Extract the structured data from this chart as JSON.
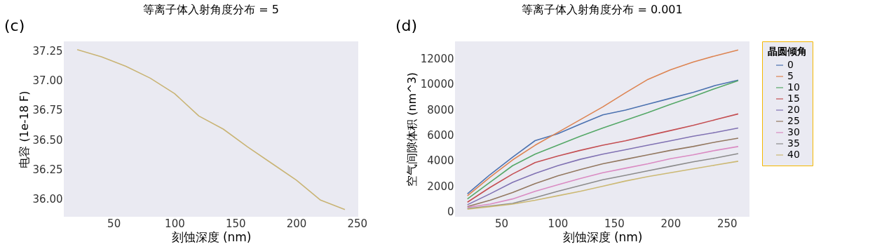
{
  "chart_data": [
    {
      "type": "line",
      "title": "等离子体入射角度分布  = 5",
      "xlabel": "刻蚀深度  (nm)",
      "ylabel": "电容  (1e-18 F)",
      "annotations": [
        "(c)"
      ],
      "x": [
        20,
        40,
        60,
        80,
        100,
        120,
        140,
        160,
        180,
        200,
        220,
        240
      ],
      "series": [
        {
          "color": "#c9b475",
          "values": [
            37.26,
            37.2,
            37.12,
            37.02,
            36.89,
            36.7,
            36.59,
            36.44,
            36.3,
            36.16,
            35.99,
            35.91
          ]
        }
      ],
      "xlim": [
        9,
        251
      ],
      "xticks": [
        50,
        100,
        150,
        200,
        250
      ],
      "ylim": [
        35.85,
        37.33
      ],
      "yticks": [
        {
          "value": 36,
          "label": "36.00"
        },
        36.25,
        {
          "value": 36.5,
          "label": "36.50"
        },
        36.75,
        {
          "value": 37,
          "label": "37.00"
        },
        37.25
      ],
      "grid": false,
      "legend": false
    },
    {
      "type": "line",
      "title": "等离子体入射角度分布  = 0.001",
      "xlabel": "刻蚀深度  (nm)",
      "ylabel": "空气间隙体积  (nm^3)",
      "legend_title": "晶圆倾角",
      "annotations": [
        "(d)"
      ],
      "x": [
        20,
        40,
        60,
        80,
        100,
        120,
        140,
        160,
        180,
        200,
        220,
        240,
        260
      ],
      "series": [
        {
          "name": "0",
          "color": "#4c72b0",
          "values": [
            1400,
            2900,
            4270,
            5560,
            6100,
            6850,
            7580,
            7950,
            8410,
            8870,
            9330,
            9880,
            10290
          ]
        },
        {
          "name": "5",
          "color": "#dd8452",
          "values": [
            1250,
            2700,
            4050,
            5200,
            6200,
            7200,
            8200,
            9300,
            10350,
            11100,
            11700,
            12200,
            12650
          ]
        },
        {
          "name": "10",
          "color": "#55a868",
          "values": [
            1000,
            2300,
            3600,
            4500,
            5200,
            5900,
            6550,
            7150,
            7750,
            8400,
            9000,
            9650,
            10250
          ]
        },
        {
          "name": "15",
          "color": "#c44e52",
          "values": [
            750,
            1900,
            2950,
            3850,
            4350,
            4800,
            5200,
            5550,
            5950,
            6350,
            6750,
            7200,
            7650
          ]
        },
        {
          "name": "20",
          "color": "#8172b3",
          "values": [
            550,
            1400,
            2300,
            3000,
            3600,
            4100,
            4500,
            4850,
            5200,
            5550,
            5900,
            6200,
            6550
          ]
        },
        {
          "name": "25",
          "color": "#937860",
          "values": [
            400,
            900,
            1500,
            2200,
            2800,
            3300,
            3750,
            4100,
            4450,
            4800,
            5100,
            5450,
            5750
          ]
        },
        {
          "name": "30",
          "color": "#da8bc3",
          "values": [
            350,
            600,
            1000,
            1600,
            2100,
            2600,
            3050,
            3400,
            3750,
            4150,
            4450,
            4800,
            5100
          ]
        },
        {
          "name": "35",
          "color": "#8c8c8c",
          "values": [
            250,
            450,
            650,
            1100,
            1600,
            2050,
            2500,
            2850,
            3200,
            3550,
            3900,
            4200,
            4550
          ]
        },
        {
          "name": "40",
          "color": "#ccb974",
          "values": [
            200,
            400,
            600,
            900,
            1250,
            1600,
            2000,
            2400,
            2750,
            3050,
            3350,
            3650,
            3950
          ]
        }
      ],
      "xlim": [
        9,
        270
      ],
      "xticks": [
        50,
        100,
        150,
        200,
        250
      ],
      "ylim": [
        -390,
        13320
      ],
      "yticks": [
        0,
        2000,
        4000,
        6000,
        8000,
        10000,
        12000
      ],
      "grid": false,
      "legend": "right"
    }
  ]
}
